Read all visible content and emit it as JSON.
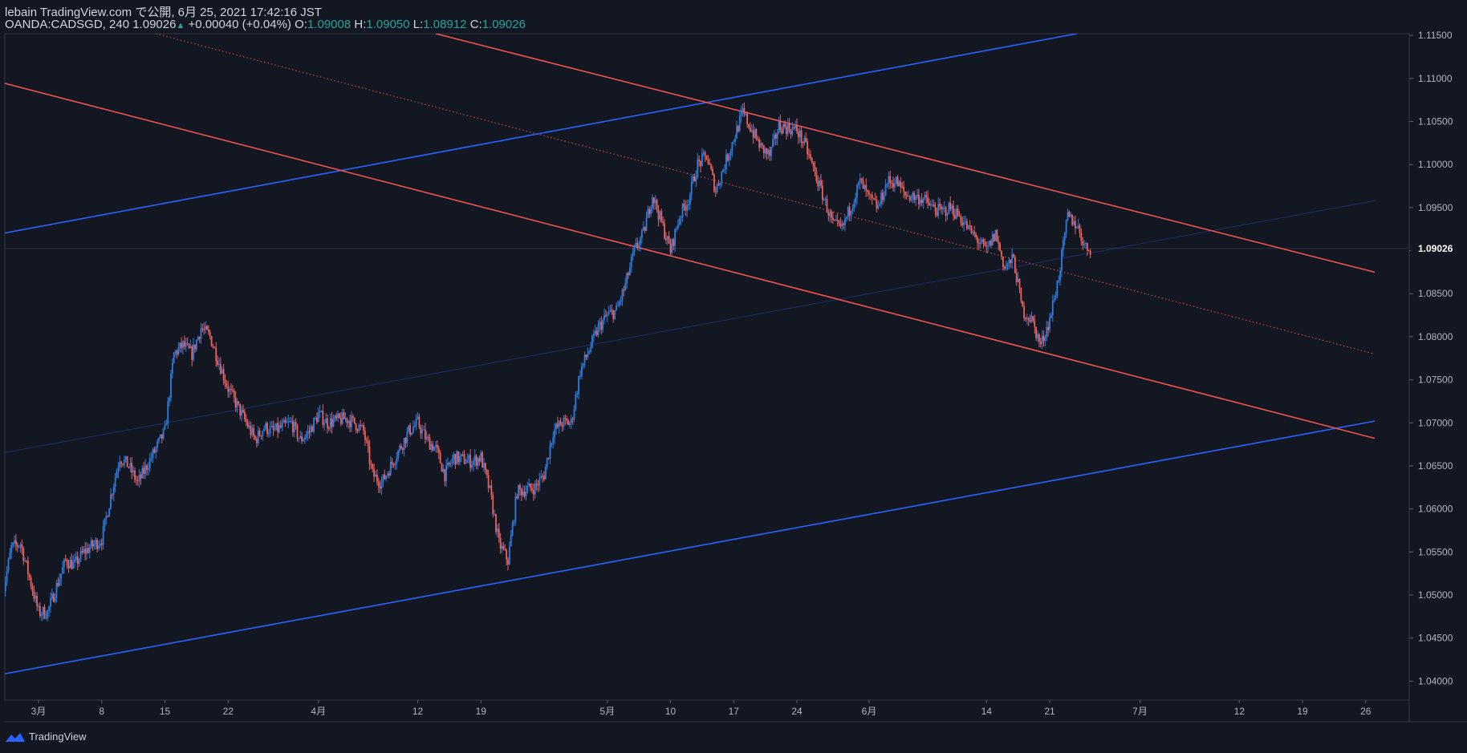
{
  "header": {
    "line1": "lebain TradingView.com で公開, 6月 25, 2021 17:42:16 JST",
    "symbol": "OANDA:CADSGD, 240",
    "last": "1.09026",
    "change": "+0.00040 (+0.04%)",
    "o_label": "O:",
    "o": "1.09008",
    "h_label": "H:",
    "h": "1.09050",
    "l_label": "L:",
    "l": "1.08912",
    "c_label": "C:",
    "c": "1.09026"
  },
  "footer": {
    "brand": "TradingView",
    "logo_icon": "tradingview-logo-icon"
  },
  "colors": {
    "background": "#131722",
    "up": "#2962ff",
    "down": "#ef5350",
    "up_candle": "#2f7de1",
    "down_candle": "#f0605a",
    "text": "#d1d4dc",
    "ohlc_value": "#26a69a"
  },
  "chart_data": {
    "type": "candlestick",
    "symbol": "OANDA:CADSGD",
    "interval": "240",
    "y_ticks": [
      "1.11500",
      "1.11000",
      "1.10500",
      "1.10000",
      "1.09500",
      "1.09000",
      "1.08500",
      "1.08000",
      "1.07500",
      "1.07000",
      "1.06500",
      "1.06000",
      "1.05500",
      "1.05000",
      "1.04500",
      "1.04000"
    ],
    "ylim": [
      1.0378,
      1.1152
    ],
    "current_price": "1.09026",
    "x_ticks": [
      {
        "label": "3月",
        "date": "2021-03-01"
      },
      {
        "label": "8",
        "date": "2021-03-08"
      },
      {
        "label": "15",
        "date": "2021-03-15"
      },
      {
        "label": "22",
        "date": "2021-03-22"
      },
      {
        "label": "4月",
        "date": "2021-04-01"
      },
      {
        "label": "12",
        "date": "2021-04-12"
      },
      {
        "label": "19",
        "date": "2021-04-19"
      },
      {
        "label": "5月",
        "date": "2021-05-03"
      },
      {
        "label": "10",
        "date": "2021-05-10"
      },
      {
        "label": "17",
        "date": "2021-05-17"
      },
      {
        "label": "24",
        "date": "2021-05-24"
      },
      {
        "label": "6月",
        "date": "2021-06-01"
      },
      {
        "label": "14",
        "date": "2021-06-14"
      },
      {
        "label": "21",
        "date": "2021-06-21"
      },
      {
        "label": "7月",
        "date": "2021-07-01"
      },
      {
        "label": "12",
        "date": "2021-07-12"
      },
      {
        "label": "19",
        "date": "2021-07-19"
      },
      {
        "label": "26",
        "date": "2021-07-26"
      }
    ],
    "close_path": [
      [
        "2021-02-25",
        1.05
      ],
      [
        "2021-02-26",
        1.0555
      ],
      [
        "2021-02-27",
        1.056
      ],
      [
        "2021-03-01",
        1.048
      ],
      [
        "2021-03-02",
        1.048
      ],
      [
        "2021-03-03",
        1.051
      ],
      [
        "2021-03-04",
        1.054
      ],
      [
        "2021-03-05",
        1.0535
      ],
      [
        "2021-03-06",
        1.055
      ],
      [
        "2021-03-08",
        1.0565
      ],
      [
        "2021-03-09",
        1.0615
      ],
      [
        "2021-03-10",
        1.066
      ],
      [
        "2021-03-11",
        1.065
      ],
      [
        "2021-03-12",
        1.063
      ],
      [
        "2021-03-13",
        1.065
      ],
      [
        "2021-03-15",
        1.069
      ],
      [
        "2021-03-16",
        1.078
      ],
      [
        "2021-03-17",
        1.079
      ],
      [
        "2021-03-18",
        1.078
      ],
      [
        "2021-03-19",
        1.081
      ],
      [
        "2021-03-20",
        1.08
      ],
      [
        "2021-03-22",
        1.074
      ],
      [
        "2021-03-23",
        1.072
      ],
      [
        "2021-03-24",
        1.07
      ],
      [
        "2021-03-25",
        1.068
      ],
      [
        "2021-03-26",
        1.0695
      ],
      [
        "2021-03-27",
        1.069
      ],
      [
        "2021-03-29",
        1.07
      ],
      [
        "2021-03-30",
        1.068
      ],
      [
        "2021-03-31",
        1.069
      ],
      [
        "2021-04-01",
        1.071
      ],
      [
        "2021-04-02",
        1.07
      ],
      [
        "2021-04-04",
        1.0705
      ],
      [
        "2021-04-05",
        1.07
      ],
      [
        "2021-04-06",
        1.069
      ],
      [
        "2021-04-07",
        1.064
      ],
      [
        "2021-04-08",
        1.063
      ],
      [
        "2021-04-09",
        1.065
      ],
      [
        "2021-04-11",
        1.069
      ],
      [
        "2021-04-12",
        1.07
      ],
      [
        "2021-04-13",
        1.068
      ],
      [
        "2021-04-14",
        1.067
      ],
      [
        "2021-04-15",
        1.064
      ],
      [
        "2021-04-16",
        1.066
      ],
      [
        "2021-04-18",
        1.0655
      ],
      [
        "2021-04-19",
        1.066
      ],
      [
        "2021-04-20",
        1.062
      ],
      [
        "2021-04-21",
        1.056
      ],
      [
        "2021-04-22",
        1.054
      ],
      [
        "2021-04-23",
        1.062
      ],
      [
        "2021-04-25",
        1.0625
      ],
      [
        "2021-04-26",
        1.064
      ],
      [
        "2021-04-27",
        1.069
      ],
      [
        "2021-04-28",
        1.07
      ],
      [
        "2021-04-29",
        1.07
      ],
      [
        "2021-04-30",
        1.076
      ],
      [
        "2021-05-02",
        1.081
      ],
      [
        "2021-05-03",
        1.0825
      ],
      [
        "2021-05-04",
        1.083
      ],
      [
        "2021-05-05",
        1.086
      ],
      [
        "2021-05-06",
        1.09
      ],
      [
        "2021-05-07",
        1.092
      ],
      [
        "2021-05-08",
        1.0965
      ],
      [
        "2021-05-10",
        1.09
      ],
      [
        "2021-05-11",
        1.094
      ],
      [
        "2021-05-12",
        1.096
      ],
      [
        "2021-05-13",
        1.1
      ],
      [
        "2021-05-14",
        1.101
      ],
      [
        "2021-05-15",
        1.097
      ],
      [
        "2021-05-17",
        1.103
      ],
      [
        "2021-05-18",
        1.106
      ],
      [
        "2021-05-19",
        1.104
      ],
      [
        "2021-05-20",
        1.102
      ],
      [
        "2021-05-21",
        1.101
      ],
      [
        "2021-05-22",
        1.1045
      ],
      [
        "2021-05-24",
        1.104
      ],
      [
        "2021-05-25",
        1.102
      ],
      [
        "2021-05-26",
        1.099
      ],
      [
        "2021-05-27",
        1.096
      ],
      [
        "2021-05-28",
        1.093
      ],
      [
        "2021-05-29",
        1.0925
      ],
      [
        "2021-05-31",
        1.098
      ],
      [
        "2021-06-01",
        1.096
      ],
      [
        "2021-06-02",
        1.095
      ],
      [
        "2021-06-03",
        1.098
      ],
      [
        "2021-06-04",
        1.098
      ],
      [
        "2021-06-05",
        1.0965
      ],
      [
        "2021-06-07",
        1.096
      ],
      [
        "2021-06-08",
        1.095
      ],
      [
        "2021-06-09",
        1.0945
      ],
      [
        "2021-06-10",
        1.095
      ],
      [
        "2021-06-11",
        1.094
      ],
      [
        "2021-06-12",
        1.0925
      ],
      [
        "2021-06-14",
        1.09
      ],
      [
        "2021-06-15",
        1.092
      ],
      [
        "2021-06-16",
        1.088
      ],
      [
        "2021-06-17",
        1.089
      ],
      [
        "2021-06-18",
        1.083
      ],
      [
        "2021-06-19",
        1.082
      ],
      [
        "2021-06-20",
        1.079
      ],
      [
        "2021-06-21",
        1.082
      ],
      [
        "2021-06-22",
        1.087
      ],
      [
        "2021-06-23",
        1.094
      ],
      [
        "2021-06-24",
        1.093
      ],
      [
        "2021-06-25",
        1.0903
      ]
    ],
    "trendlines": [
      {
        "color": "#2962ff",
        "style": "solid",
        "points": [
          [
            "2021-02-25",
            1.092
          ],
          [
            "2021-06-24",
            1.1152
          ]
        ]
      },
      {
        "color": "#2962ff",
        "style": "solid",
        "points": [
          [
            "2021-02-25",
            1.0408
          ],
          [
            "2021-07-27",
            1.0702
          ]
        ]
      },
      {
        "color": "#2962ff",
        "style": "faint",
        "points": [
          [
            "2021-02-25",
            1.0665
          ],
          [
            "2021-07-27",
            1.0958
          ]
        ]
      },
      {
        "color": "#ef5350",
        "style": "solid",
        "points": [
          [
            "2021-04-14",
            1.1152
          ],
          [
            "2021-07-27",
            1.0875
          ]
        ]
      },
      {
        "color": "#ef5350",
        "style": "solid",
        "points": [
          [
            "2021-02-25",
            1.1095
          ],
          [
            "2021-07-27",
            1.0682
          ]
        ]
      },
      {
        "color": "#ef5350",
        "style": "dotted",
        "points": [
          [
            "2021-03-14",
            1.1152
          ],
          [
            "2021-07-27",
            1.078
          ]
        ]
      }
    ]
  }
}
